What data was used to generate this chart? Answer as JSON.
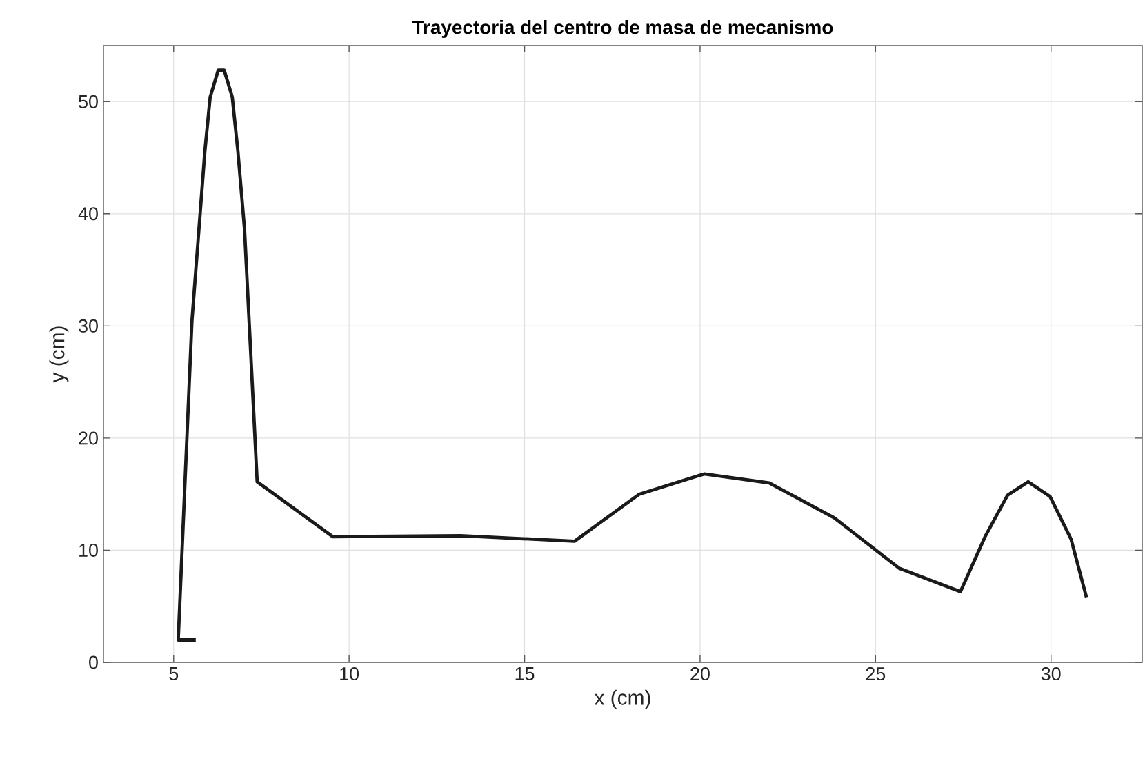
{
  "chart_data": {
    "type": "line",
    "title": "Trayectoria del  centro de masa de mecanismo",
    "xlabel": "x (cm)",
    "ylabel": "y (cm)",
    "x": [
      5.63,
      5.13,
      5.52,
      5.89,
      6.04,
      6.27,
      6.44,
      6.67,
      6.83,
      7.02,
      7.38,
      9.54,
      13.17,
      16.42,
      18.27,
      20.12,
      21.97,
      23.82,
      25.67,
      27.42,
      28.12,
      28.76,
      29.35,
      29.97,
      30.57,
      31.01
    ],
    "values": [
      2.0,
      2.0,
      30.4,
      45.6,
      50.4,
      52.8,
      52.8,
      50.4,
      45.6,
      38.6,
      16.1,
      11.2,
      11.3,
      10.8,
      15.0,
      16.8,
      16.0,
      12.9,
      8.4,
      6.3,
      11.2,
      14.9,
      16.1,
      14.8,
      11.0,
      5.8
    ],
    "color": "#1a1a1a",
    "xlim": [
      3,
      32.6
    ],
    "ylim": [
      0,
      55
    ],
    "xticks": [
      5,
      10,
      15,
      20,
      25,
      30
    ],
    "yticks": [
      0,
      10,
      20,
      30,
      40,
      50
    ],
    "grid": true
  }
}
